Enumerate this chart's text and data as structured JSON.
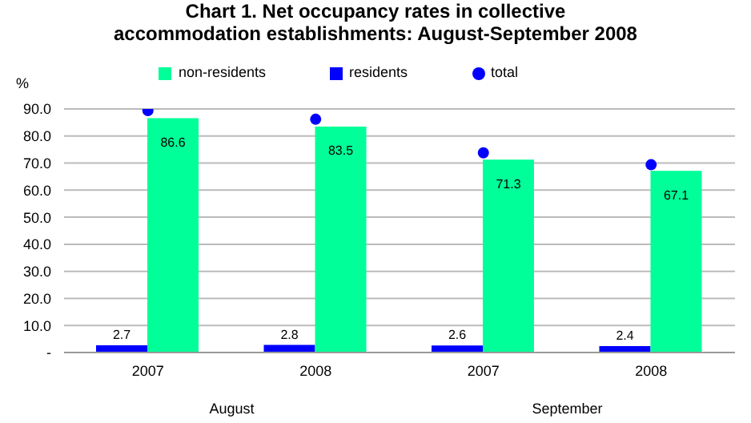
{
  "chart_data": {
    "type": "bar",
    "title": "Chart 1.  Net occupancy rates in collective accommodation establishments: August-September 2008",
    "ylabel": "%",
    "categories": [
      "2007",
      "2008",
      "2007",
      "2008"
    ],
    "annotations": [
      "August",
      "September"
    ],
    "series": [
      {
        "name": "residents",
        "color": "#0000ff",
        "values": [
          2.7,
          2.8,
          2.6,
          2.4
        ],
        "value_labels": [
          "2.7",
          "2.8",
          "2.6",
          "2.4"
        ]
      },
      {
        "name": "non-residents",
        "color": "#00ff99",
        "values": [
          86.6,
          83.5,
          71.3,
          67.1
        ],
        "value_labels": [
          "86.6",
          "83.5",
          "71.3",
          "67.1"
        ]
      },
      {
        "name": "total",
        "type": "scatter",
        "color": "#0000ff",
        "values": [
          89.4,
          86.2,
          73.8,
          69.4
        ]
      }
    ],
    "ylim": [
      0,
      90
    ],
    "yticks": [
      {
        "value": 0,
        "label": "-"
      },
      {
        "value": 10,
        "label": "10.0"
      },
      {
        "value": 20,
        "label": "20.0"
      },
      {
        "value": 30,
        "label": "30.0"
      },
      {
        "value": 40,
        "label": "40.0"
      },
      {
        "value": 50,
        "label": "50.0"
      },
      {
        "value": 60,
        "label": "60.0"
      },
      {
        "value": 70,
        "label": "70.0"
      },
      {
        "value": 80,
        "label": "80.0"
      },
      {
        "value": 90,
        "label": "90.0"
      }
    ],
    "grid": "y",
    "legend": "top",
    "marker": "circle"
  }
}
